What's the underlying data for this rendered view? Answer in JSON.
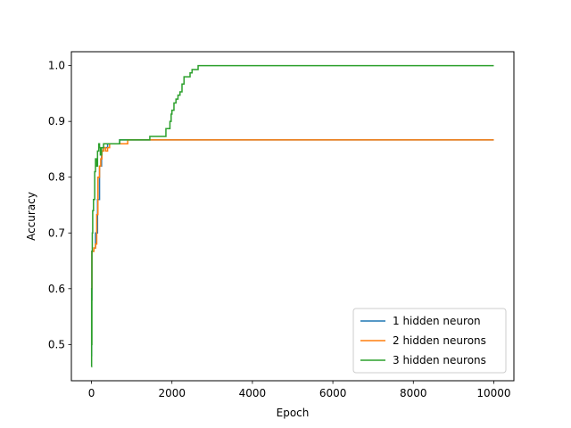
{
  "chart_data": {
    "type": "line",
    "title": "",
    "xlabel": "Epoch",
    "ylabel": "Accuracy",
    "xlim": [
      -500,
      10500
    ],
    "ylim": [
      0.435,
      1.025
    ],
    "xticks": [
      0,
      2000,
      4000,
      6000,
      8000,
      10000
    ],
    "xtick_labels": [
      "0",
      "2000",
      "4000",
      "6000",
      "8000",
      "10000"
    ],
    "yticks": [
      0.5,
      0.6,
      0.7,
      0.8,
      0.9,
      1.0
    ],
    "ytick_labels": [
      "0.5",
      "0.6",
      "0.7",
      "0.8",
      "0.9",
      "1.0"
    ],
    "grid": false,
    "legend_position": "lower-right",
    "series": [
      {
        "name": "1 hidden neuron",
        "color": "#1f77b4",
        "x": [
          0,
          5,
          10,
          30,
          60,
          100,
          150,
          200,
          250,
          300,
          400,
          500,
          700,
          1000,
          2000,
          4000,
          10000
        ],
        "y": [
          0.48,
          0.58,
          0.667,
          0.667,
          0.673,
          0.7,
          0.76,
          0.82,
          0.847,
          0.853,
          0.86,
          0.86,
          0.867,
          0.867,
          0.867,
          0.867,
          0.867
        ]
      },
      {
        "name": "2 hidden neurons",
        "color": "#ff7f0e",
        "x": [
          0,
          5,
          10,
          30,
          60,
          100,
          130,
          160,
          200,
          230,
          260,
          300,
          350,
          400,
          450,
          500,
          600,
          700,
          800,
          880,
          900,
          1000,
          2000,
          4000,
          10000
        ],
        "y": [
          0.5,
          0.6,
          0.667,
          0.667,
          0.673,
          0.68,
          0.733,
          0.8,
          0.82,
          0.833,
          0.847,
          0.853,
          0.847,
          0.853,
          0.86,
          0.86,
          0.86,
          0.86,
          0.86,
          0.86,
          0.867,
          0.867,
          0.867,
          0.867,
          0.867
        ]
      },
      {
        "name": "3 hidden neurons",
        "color": "#2ca02c",
        "x": [
          0,
          3,
          6,
          10,
          20,
          30,
          50,
          80,
          100,
          130,
          150,
          180,
          200,
          220,
          250,
          300,
          400,
          600,
          700,
          1000,
          1400,
          1450,
          1800,
          1850,
          1950,
          1980,
          2000,
          2050,
          2100,
          2150,
          2200,
          2250,
          2300,
          2350,
          2400,
          2450,
          2500,
          2600,
          2650,
          2700,
          10000
        ],
        "y": [
          0.46,
          0.6,
          0.5,
          0.667,
          0.7,
          0.74,
          0.76,
          0.81,
          0.833,
          0.82,
          0.847,
          0.86,
          0.853,
          0.84,
          0.853,
          0.86,
          0.86,
          0.86,
          0.867,
          0.867,
          0.867,
          0.873,
          0.873,
          0.887,
          0.9,
          0.913,
          0.92,
          0.933,
          0.94,
          0.947,
          0.953,
          0.967,
          0.98,
          0.98,
          0.98,
          0.987,
          0.993,
          0.993,
          1.0,
          1.0,
          1.0
        ]
      }
    ]
  }
}
